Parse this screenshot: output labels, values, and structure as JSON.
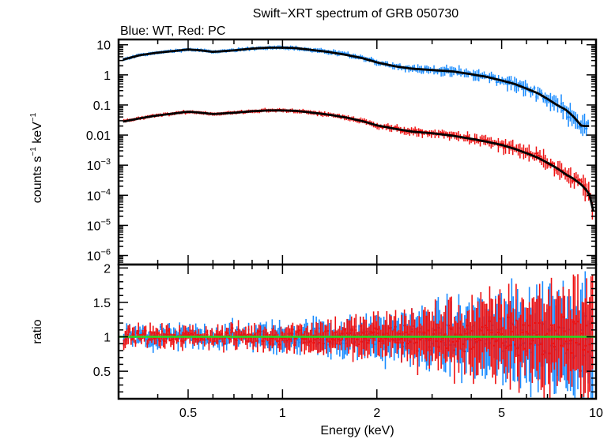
{
  "chart_data": [
    {
      "type": "scatter",
      "title": "Swift−XRT spectrum of GRB 050730",
      "subtitle": "Blue: WT, Red: PC",
      "xlabel": "Energy (keV)",
      "ylabel_parts": [
        "counts s",
        "−1",
        " keV",
        "−1"
      ],
      "x_scale": "log",
      "y_scale": "log",
      "xlim": [
        0.3,
        10
      ],
      "ylim": [
        5e-07,
        15
      ],
      "y_ticks": [
        {
          "value": 10,
          "base": "10",
          "exp": ""
        },
        {
          "value": 1,
          "base": "1",
          "exp": ""
        },
        {
          "value": 0.1,
          "base": "0.1",
          "exp": ""
        },
        {
          "value": 0.01,
          "base": "0.01",
          "exp": ""
        },
        {
          "value": 0.001,
          "base": "10",
          "exp": "−3"
        },
        {
          "value": 0.0001,
          "base": "10",
          "exp": "−4"
        },
        {
          "value": 1e-05,
          "base": "10",
          "exp": "−5"
        },
        {
          "value": 1e-06,
          "base": "10",
          "exp": "−6"
        }
      ],
      "series": [
        {
          "name": "WT",
          "color": "#1a8cff",
          "x": [
            0.31,
            0.35,
            0.4,
            0.45,
            0.5,
            0.55,
            0.6,
            0.7,
            0.8,
            0.9,
            1.0,
            1.1,
            1.2,
            1.4,
            1.6,
            1.8,
            2.0,
            2.3,
            2.6,
            3.0,
            3.5,
            4.0,
            4.5,
            5.0,
            5.5,
            6.0,
            6.5,
            7.0,
            7.5,
            8.0,
            8.5,
            9.0,
            9.5
          ],
          "y": [
            3.2,
            4.5,
            5.5,
            6.2,
            7.0,
            6.5,
            5.8,
            6.5,
            7.5,
            8.0,
            8.0,
            7.8,
            7.0,
            5.8,
            4.6,
            3.6,
            2.6,
            1.9,
            1.6,
            1.45,
            1.3,
            1.05,
            0.85,
            0.65,
            0.5,
            0.35,
            0.25,
            0.16,
            0.1,
            0.07,
            0.04,
            0.02,
            0.02
          ]
        },
        {
          "name": "PC",
          "color": "#ee1111",
          "x": [
            0.31,
            0.35,
            0.4,
            0.45,
            0.5,
            0.55,
            0.6,
            0.7,
            0.8,
            0.9,
            1.0,
            1.1,
            1.2,
            1.4,
            1.6,
            1.8,
            2.0,
            2.3,
            2.6,
            3.0,
            3.5,
            4.0,
            4.5,
            5.0,
            5.5,
            6.0,
            6.5,
            7.0,
            7.5,
            8.0,
            8.5,
            9.0,
            9.5,
            9.8
          ],
          "y": [
            0.028,
            0.036,
            0.045,
            0.052,
            0.06,
            0.055,
            0.05,
            0.055,
            0.062,
            0.066,
            0.066,
            0.064,
            0.058,
            0.048,
            0.038,
            0.029,
            0.021,
            0.016,
            0.013,
            0.0115,
            0.0095,
            0.0075,
            0.006,
            0.0047,
            0.0035,
            0.0025,
            0.0018,
            0.0012,
            0.0008,
            0.0005,
            0.00035,
            0.00022,
            0.00012,
            3e-05
          ]
        }
      ],
      "model_color": "#000000"
    },
    {
      "type": "scatter",
      "xlabel": "Energy (keV)",
      "ylabel": "ratio",
      "x_scale": "log",
      "xlim": [
        0.3,
        10
      ],
      "ylim": [
        0.1,
        2.05
      ],
      "x_ticks": [
        {
          "value": 0.5,
          "label": "0.5"
        },
        {
          "value": 1,
          "label": "1"
        },
        {
          "value": 2,
          "label": "2"
        },
        {
          "value": 5,
          "label": "5"
        },
        {
          "value": 10,
          "label": "10"
        }
      ],
      "y_ticks": [
        {
          "value": 0.5,
          "label": "0.5"
        },
        {
          "value": 1,
          "label": "1"
        },
        {
          "value": 1.5,
          "label": "1.5"
        },
        {
          "value": 2,
          "label": "2"
        }
      ],
      "reference_line": {
        "value": 1,
        "color": "#22dd22"
      },
      "series": [
        {
          "name": "WT",
          "color": "#1a8cff",
          "scatter_amplitude": [
            0.22,
            0.6
          ]
        },
        {
          "name": "PC",
          "color": "#ee1111",
          "scatter_amplitude": [
            0.18,
            0.8
          ]
        }
      ]
    }
  ]
}
